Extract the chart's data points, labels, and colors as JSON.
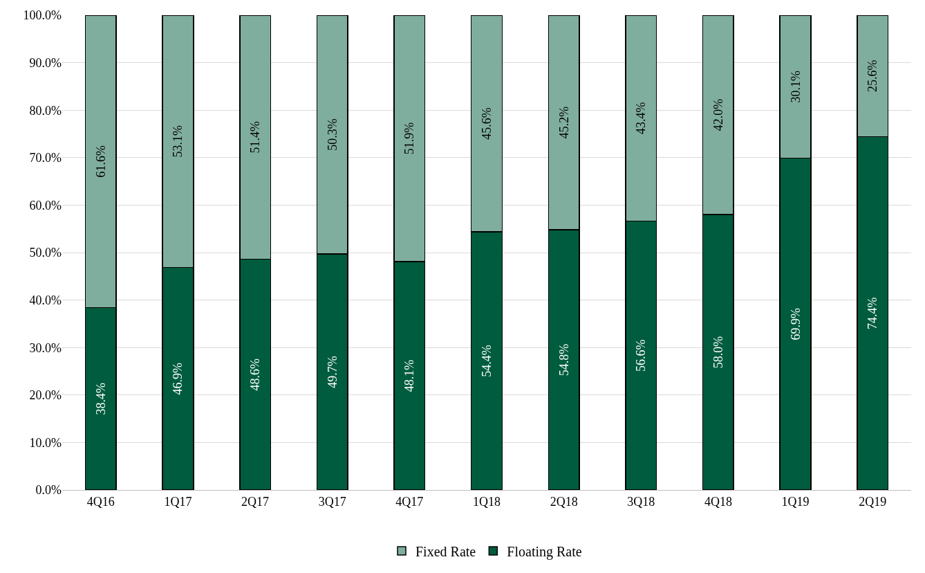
{
  "chart_data": {
    "type": "bar",
    "stacked": true,
    "categories": [
      "4Q16",
      "1Q17",
      "2Q17",
      "3Q17",
      "4Q17",
      "1Q18",
      "2Q18",
      "3Q18",
      "4Q18",
      "1Q19",
      "2Q19"
    ],
    "series": [
      {
        "name": "Floating Rate",
        "color": "#005c3e",
        "values": [
          38.4,
          46.9,
          48.6,
          49.7,
          48.1,
          54.4,
          54.8,
          56.6,
          58.0,
          69.9,
          74.4
        ],
        "value_labels": [
          "38.4%",
          "46.9%",
          "48.6%",
          "49.7%",
          "48.1%",
          "54.4%",
          "54.8%",
          "56.6%",
          "58.0%",
          "69.9%",
          "74.4%"
        ]
      },
      {
        "name": "Fixed Rate",
        "color": "#80ae9e",
        "values": [
          61.6,
          53.1,
          51.4,
          50.3,
          51.9,
          45.6,
          45.2,
          43.4,
          42.0,
          30.1,
          25.6
        ],
        "value_labels": [
          "61.6%",
          "53.1%",
          "51.4%",
          "50.3%",
          "51.9%",
          "45.6%",
          "45.2%",
          "43.4%",
          "42.0%",
          "30.1%",
          "25.6%"
        ]
      }
    ],
    "ylim": [
      0,
      100
    ],
    "yticks": [
      {
        "value": 0,
        "label": "0.0%"
      },
      {
        "value": 10,
        "label": "10.0%"
      },
      {
        "value": 20,
        "label": "20.0%"
      },
      {
        "value": 30,
        "label": "30.0%"
      },
      {
        "value": 40,
        "label": "40.0%"
      },
      {
        "value": 50,
        "label": "50.0%"
      },
      {
        "value": 60,
        "label": "60.0%"
      },
      {
        "value": 70,
        "label": "70.0%"
      },
      {
        "value": 80,
        "label": "80.0%"
      },
      {
        "value": 90,
        "label": "90.0%"
      },
      {
        "value": 100,
        "label": "100.0%"
      }
    ],
    "grid": "y",
    "legend": "bottom"
  }
}
